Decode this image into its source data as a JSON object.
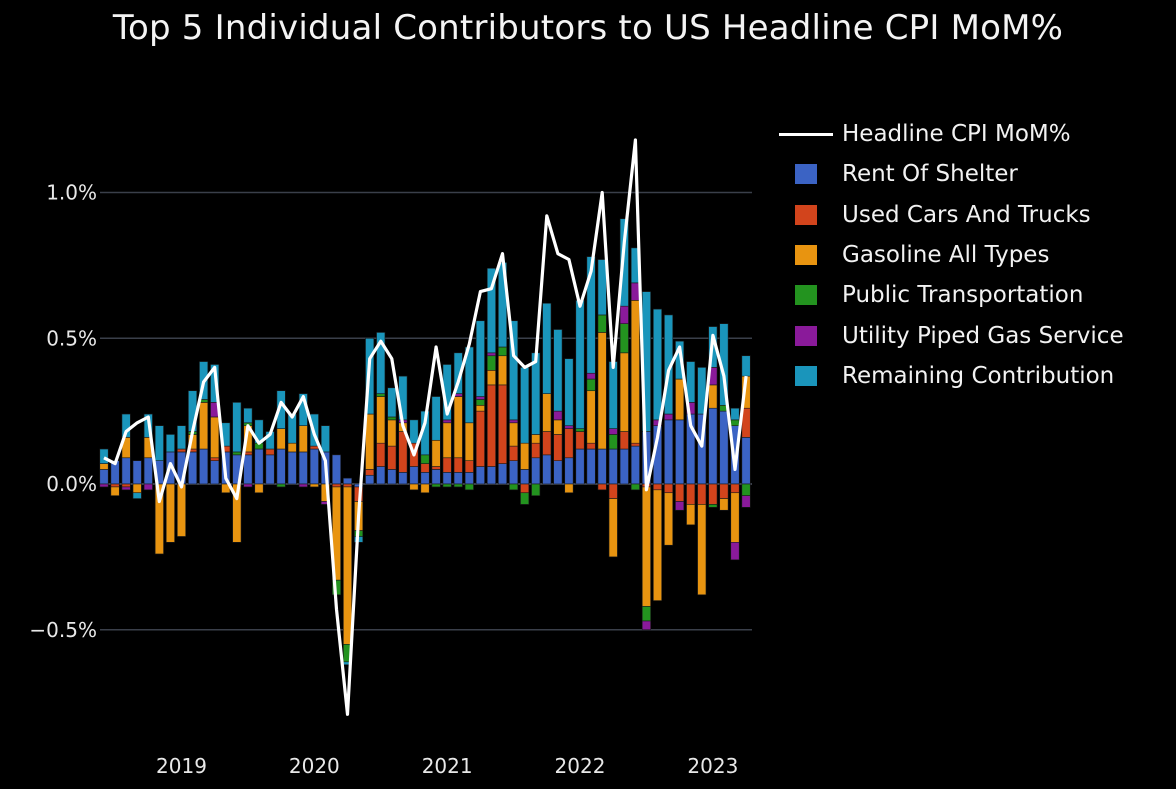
{
  "chart_data": {
    "type": "bar",
    "title": "Top 5 Individual Contributors to US Headline CPI MoM%",
    "xlabel": "",
    "ylabel": "",
    "ylim": [
      -0.81,
      1.25
    ],
    "yticks": [
      -0.5,
      0.0,
      0.5,
      1.0
    ],
    "ytick_labels": [
      "−0.5%",
      "0.0%",
      "0.5%",
      "1.0%"
    ],
    "grid": true,
    "legend_position": "right",
    "barmode": "relative",
    "start_month": "2018-06",
    "xtick_labels": [
      "2019",
      "2020",
      "2021",
      "2022",
      "2023"
    ],
    "xtick_months": [
      "2019-01",
      "2020-01",
      "2021-01",
      "2022-01",
      "2023-01"
    ],
    "categories": [
      "2018-06",
      "2018-07",
      "2018-08",
      "2018-09",
      "2018-10",
      "2018-11",
      "2018-12",
      "2019-01",
      "2019-02",
      "2019-03",
      "2019-04",
      "2019-05",
      "2019-06",
      "2019-07",
      "2019-08",
      "2019-09",
      "2019-10",
      "2019-11",
      "2019-12",
      "2020-01",
      "2020-02",
      "2020-03",
      "2020-04",
      "2020-05",
      "2020-06",
      "2020-07",
      "2020-08",
      "2020-09",
      "2020-10",
      "2020-11",
      "2020-12",
      "2021-01",
      "2021-02",
      "2021-03",
      "2021-04",
      "2021-05",
      "2021-06",
      "2021-07",
      "2021-08",
      "2021-09",
      "2021-10",
      "2021-11",
      "2021-12",
      "2022-01",
      "2022-02",
      "2022-03",
      "2022-04",
      "2022-05",
      "2022-06",
      "2022-07",
      "2022-08",
      "2022-09",
      "2022-10",
      "2022-11",
      "2022-12",
      "2023-01",
      "2023-02",
      "2023-03",
      "2023-04"
    ],
    "series": [
      {
        "name": "Rent Of Shelter",
        "color": "#3b63c4",
        "type": "bar",
        "values": [
          0.05,
          0.08,
          0.09,
          0.08,
          0.09,
          0.08,
          0.11,
          0.11,
          0.11,
          0.12,
          0.08,
          0.11,
          0.1,
          0.1,
          0.12,
          0.1,
          0.12,
          0.11,
          0.11,
          0.12,
          0.11,
          0.1,
          0.02,
          -0.01,
          0.03,
          0.06,
          0.05,
          0.04,
          0.06,
          0.04,
          0.05,
          0.04,
          0.04,
          0.04,
          0.06,
          0.06,
          0.07,
          0.08,
          0.05,
          0.09,
          0.1,
          0.08,
          0.09,
          0.12,
          0.12,
          0.12,
          0.12,
          0.12,
          0.13,
          0.18,
          0.2,
          0.22,
          0.22,
          0.24,
          0.24,
          0.26,
          0.25,
          0.2,
          0.16
        ]
      },
      {
        "name": "Used Cars And Trucks",
        "color": "#d2441c",
        "type": "bar",
        "values": [
          0.0,
          -0.01,
          -0.01,
          0.0,
          0.0,
          0.0,
          0.0,
          0.01,
          0.01,
          0.0,
          0.01,
          0.02,
          0.0,
          0.01,
          0.0,
          0.02,
          0.0,
          0.0,
          0.0,
          0.01,
          0.0,
          -0.01,
          -0.01,
          -0.05,
          0.02,
          0.08,
          0.08,
          0.14,
          0.08,
          0.03,
          0.01,
          0.05,
          0.05,
          0.04,
          0.19,
          0.28,
          0.27,
          0.05,
          -0.03,
          0.05,
          0.08,
          0.09,
          0.1,
          0.06,
          0.02,
          -0.02,
          -0.05,
          0.06,
          0.01,
          -0.01,
          -0.02,
          -0.03,
          -0.06,
          -0.07,
          -0.07,
          -0.07,
          -0.05,
          -0.03,
          0.1
        ]
      },
      {
        "name": "Gasoline All Types",
        "color": "#e89410",
        "type": "bar",
        "values": [
          0.02,
          -0.03,
          0.07,
          -0.03,
          0.07,
          -0.24,
          -0.2,
          -0.18,
          0.05,
          0.16,
          0.14,
          -0.03,
          -0.2,
          0.09,
          -0.03,
          0.0,
          0.07,
          0.03,
          0.09,
          -0.01,
          -0.06,
          -0.32,
          -0.54,
          -0.1,
          0.19,
          0.16,
          0.09,
          0.03,
          -0.02,
          -0.03,
          0.09,
          0.12,
          0.21,
          0.13,
          0.02,
          0.05,
          0.1,
          0.08,
          0.09,
          0.03,
          0.13,
          0.05,
          -0.03,
          0.0,
          0.18,
          0.4,
          -0.2,
          0.27,
          0.49,
          -0.41,
          -0.38,
          -0.18,
          0.14,
          -0.07,
          -0.31,
          0.08,
          -0.04,
          -0.17,
          0.11
        ]
      },
      {
        "name": "Public Transportation",
        "color": "#23931f",
        "type": "bar",
        "values": [
          0.0,
          0.0,
          0.0,
          0.0,
          0.0,
          0.0,
          0.0,
          0.0,
          0.01,
          0.01,
          0.0,
          0.0,
          0.01,
          0.01,
          0.02,
          0.0,
          -0.01,
          0.0,
          0.0,
          0.0,
          0.0,
          -0.05,
          -0.06,
          -0.02,
          0.0,
          0.01,
          0.01,
          0.0,
          0.0,
          0.03,
          -0.01,
          -0.01,
          -0.01,
          -0.02,
          0.02,
          0.05,
          0.03,
          -0.02,
          -0.04,
          -0.04,
          0.0,
          0.0,
          0.0,
          0.01,
          0.04,
          0.06,
          0.05,
          0.1,
          -0.02,
          -0.05,
          0.0,
          0.0,
          0.0,
          0.0,
          0.0,
          -0.01,
          0.02,
          0.02,
          -0.04
        ]
      },
      {
        "name": "Utility Piped Gas Service",
        "color": "#8a1a9a",
        "type": "bar",
        "values": [
          -0.01,
          0.0,
          -0.01,
          0.0,
          -0.02,
          0.0,
          0.0,
          0.0,
          0.0,
          0.0,
          0.05,
          0.0,
          0.0,
          -0.01,
          0.0,
          0.0,
          0.0,
          0.0,
          -0.01,
          0.0,
          -0.01,
          0.0,
          0.0,
          0.0,
          0.0,
          0.0,
          0.0,
          0.01,
          0.0,
          0.0,
          0.0,
          0.01,
          0.01,
          0.0,
          0.01,
          0.01,
          0.0,
          0.01,
          0.0,
          0.0,
          0.0,
          0.03,
          0.01,
          0.0,
          0.02,
          0.0,
          0.02,
          0.06,
          0.06,
          -0.03,
          0.02,
          0.02,
          -0.03,
          0.04,
          0.0,
          0.06,
          0.0,
          -0.06,
          -0.04
        ]
      },
      {
        "name": "Remaining Contribution",
        "color": "#1a95bb",
        "type": "bar",
        "values": [
          0.05,
          0.0,
          0.08,
          -0.02,
          0.08,
          0.12,
          0.06,
          0.08,
          0.14,
          0.13,
          0.13,
          0.08,
          0.17,
          0.05,
          0.08,
          0.06,
          0.13,
          0.1,
          0.11,
          0.11,
          0.09,
          0.0,
          -0.01,
          -0.02,
          0.26,
          0.21,
          0.1,
          0.15,
          0.08,
          0.15,
          0.15,
          0.19,
          0.14,
          0.26,
          0.26,
          0.29,
          0.29,
          0.34,
          0.26,
          0.28,
          0.31,
          0.28,
          0.23,
          0.44,
          0.4,
          0.19,
          0.23,
          0.3,
          0.12,
          0.48,
          0.38,
          0.34,
          0.13,
          0.14,
          0.16,
          0.14,
          0.28,
          0.04,
          0.07
        ]
      },
      {
        "name": "Headline CPI MoM%",
        "color": "#ffffff",
        "type": "line",
        "values": [
          0.09,
          0.07,
          0.18,
          0.21,
          0.23,
          -0.06,
          0.07,
          -0.01,
          0.18,
          0.35,
          0.4,
          0.02,
          -0.05,
          0.2,
          0.14,
          0.17,
          0.28,
          0.23,
          0.3,
          0.17,
          0.08,
          -0.43,
          -0.79,
          -0.11,
          0.43,
          0.49,
          0.43,
          0.2,
          0.1,
          0.21,
          0.47,
          0.24,
          0.35,
          0.48,
          0.66,
          0.67,
          0.79,
          0.44,
          0.4,
          0.42,
          0.92,
          0.79,
          0.77,
          0.61,
          0.73,
          1.0,
          0.4,
          0.83,
          1.18,
          -0.02,
          0.16,
          0.39,
          0.47,
          0.2,
          0.13,
          0.51,
          0.37,
          0.05,
          0.37
        ]
      }
    ]
  },
  "legend": {
    "items": [
      {
        "label": "Headline CPI MoM%",
        "kind": "line",
        "color": "#ffffff"
      },
      {
        "label": "Rent Of Shelter",
        "kind": "box",
        "color": "#3b63c4"
      },
      {
        "label": "Used Cars And Trucks",
        "kind": "box",
        "color": "#d2441c"
      },
      {
        "label": "Gasoline All Types",
        "kind": "box",
        "color": "#e89410"
      },
      {
        "label": "Public Transportation",
        "kind": "box",
        "color": "#23931f"
      },
      {
        "label": "Utility Piped Gas Service",
        "kind": "box",
        "color": "#8a1a9a"
      },
      {
        "label": "Remaining Contribution",
        "kind": "box",
        "color": "#1a95bb"
      }
    ]
  },
  "colors": {
    "background": "#000000",
    "grid": "#3a3f4a",
    "text": "#f2f2f2"
  }
}
